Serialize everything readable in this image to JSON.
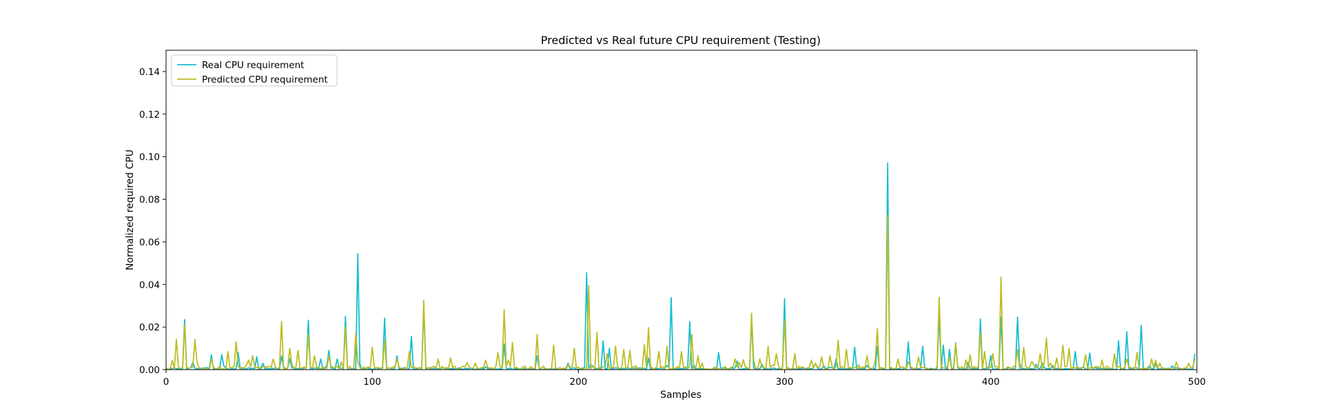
{
  "chart_data": {
    "type": "line",
    "title": "Predicted vs Real future CPU requirement (Testing)",
    "xlabel": "Samples",
    "ylabel": "Normalized required CPU",
    "xlim": [
      0,
      500
    ],
    "ylim": [
      0,
      0.15
    ],
    "xticks": [
      0,
      100,
      200,
      300,
      400,
      500
    ],
    "yticks": [
      0.0,
      0.02,
      0.04,
      0.06,
      0.08,
      0.1,
      0.12,
      0.14
    ],
    "grid": false,
    "legend_position": "upper-left",
    "series": [
      {
        "name": "Real CPU requirement",
        "color": "#17becf",
        "peaks": [
          [
            0,
            0.0008
          ],
          [
            9,
            0.0235
          ],
          [
            13,
            0.0035
          ],
          [
            22,
            0.007
          ],
          [
            27,
            0.007
          ],
          [
            35,
            0.008
          ],
          [
            44,
            0.006
          ],
          [
            56,
            0.0065
          ],
          [
            60,
            0.005
          ],
          [
            69,
            0.0232
          ],
          [
            75,
            0.005
          ],
          [
            79,
            0.009
          ],
          [
            83,
            0.005
          ],
          [
            87,
            0.025
          ],
          [
            93,
            0.0545
          ],
          [
            106,
            0.0242
          ],
          [
            112,
            0.0065
          ],
          [
            119,
            0.0156
          ],
          [
            125,
            0.0292
          ],
          [
            164,
            0.012
          ],
          [
            180,
            0.0065
          ],
          [
            195,
            0.003
          ],
          [
            204,
            0.0455
          ],
          [
            212,
            0.0135
          ],
          [
            215,
            0.01
          ],
          [
            234,
            0.0055
          ],
          [
            245,
            0.0338
          ],
          [
            254,
            0.0225
          ],
          [
            268,
            0.008
          ],
          [
            277,
            0.004
          ],
          [
            284,
            0.0235
          ],
          [
            300,
            0.0333
          ],
          [
            315,
            0.003
          ],
          [
            325,
            0.005
          ],
          [
            334,
            0.0105
          ],
          [
            345,
            0.011
          ],
          [
            350,
            0.097
          ],
          [
            360,
            0.013
          ],
          [
            367,
            0.011
          ],
          [
            375,
            0.026
          ],
          [
            377,
            0.0115
          ],
          [
            380,
            0.0095
          ],
          [
            383,
            0.0125
          ],
          [
            395,
            0.0237
          ],
          [
            400,
            0.0065
          ],
          [
            405,
            0.0247
          ],
          [
            413,
            0.0247
          ],
          [
            441,
            0.0085
          ],
          [
            448,
            0.0078
          ],
          [
            462,
            0.0136
          ],
          [
            466,
            0.0178
          ],
          [
            473,
            0.0207
          ],
          [
            499,
            0.0074
          ]
        ]
      },
      {
        "name": "Predicted CPU requirement",
        "color": "#bcbd22",
        "peaks": [
          [
            0,
            0.0005
          ],
          [
            5,
            0.0142
          ],
          [
            9,
            0.021
          ],
          [
            14,
            0.0142
          ],
          [
            22,
            0.005
          ],
          [
            30,
            0.0085
          ],
          [
            34,
            0.013
          ],
          [
            42,
            0.0065
          ],
          [
            52,
            0.005
          ],
          [
            56,
            0.0227
          ],
          [
            60,
            0.01
          ],
          [
            64,
            0.009
          ],
          [
            69,
            0.0165
          ],
          [
            72,
            0.0065
          ],
          [
            79,
            0.0065
          ],
          [
            87,
            0.02
          ],
          [
            92,
            0.017
          ],
          [
            100,
            0.0105
          ],
          [
            106,
            0.014
          ],
          [
            112,
            0.005
          ],
          [
            118,
            0.0085
          ],
          [
            125,
            0.0325
          ],
          [
            132,
            0.005
          ],
          [
            138,
            0.0055
          ],
          [
            150,
            0.003
          ],
          [
            161,
            0.008
          ],
          [
            164,
            0.0282
          ],
          [
            168,
            0.0128
          ],
          [
            180,
            0.0165
          ],
          [
            188,
            0.0115
          ],
          [
            198,
            0.01
          ],
          [
            205,
            0.0395
          ],
          [
            209,
            0.0175
          ],
          [
            214,
            0.0075
          ],
          [
            218,
            0.011
          ],
          [
            222,
            0.0095
          ],
          [
            225,
            0.009
          ],
          [
            232,
            0.0117
          ],
          [
            234,
            0.0197
          ],
          [
            239,
            0.0085
          ],
          [
            243,
            0.011
          ],
          [
            250,
            0.0085
          ],
          [
            255,
            0.0165
          ],
          [
            258,
            0.0065
          ],
          [
            276,
            0.005
          ],
          [
            284,
            0.0265
          ],
          [
            288,
            0.005
          ],
          [
            292,
            0.011
          ],
          [
            296,
            0.0075
          ],
          [
            300,
            0.0235
          ],
          [
            305,
            0.0075
          ],
          [
            313,
            0.0045
          ],
          [
            318,
            0.006
          ],
          [
            322,
            0.0065
          ],
          [
            326,
            0.0138
          ],
          [
            330,
            0.0095
          ],
          [
            340,
            0.0065
          ],
          [
            345,
            0.0193
          ],
          [
            350,
            0.0725
          ],
          [
            355,
            0.005
          ],
          [
            365,
            0.006
          ],
          [
            375,
            0.034
          ],
          [
            380,
            0.006
          ],
          [
            383,
            0.012
          ],
          [
            390,
            0.007
          ],
          [
            395,
            0.0175
          ],
          [
            397,
            0.0085
          ],
          [
            401,
            0.0075
          ],
          [
            405,
            0.0435
          ],
          [
            413,
            0.0095
          ],
          [
            416,
            0.0105
          ],
          [
            424,
            0.0075
          ],
          [
            427,
            0.0148
          ],
          [
            432,
            0.0055
          ],
          [
            435,
            0.0115
          ],
          [
            438,
            0.01
          ],
          [
            446,
            0.007
          ],
          [
            454,
            0.0045
          ],
          [
            460,
            0.0075
          ],
          [
            466,
            0.005
          ],
          [
            471,
            0.008
          ],
          [
            478,
            0.005
          ],
          [
            482,
            0.003
          ],
          [
            490,
            0.0035
          ],
          [
            496,
            0.003
          ],
          [
            499,
            0.005
          ]
        ]
      }
    ]
  }
}
